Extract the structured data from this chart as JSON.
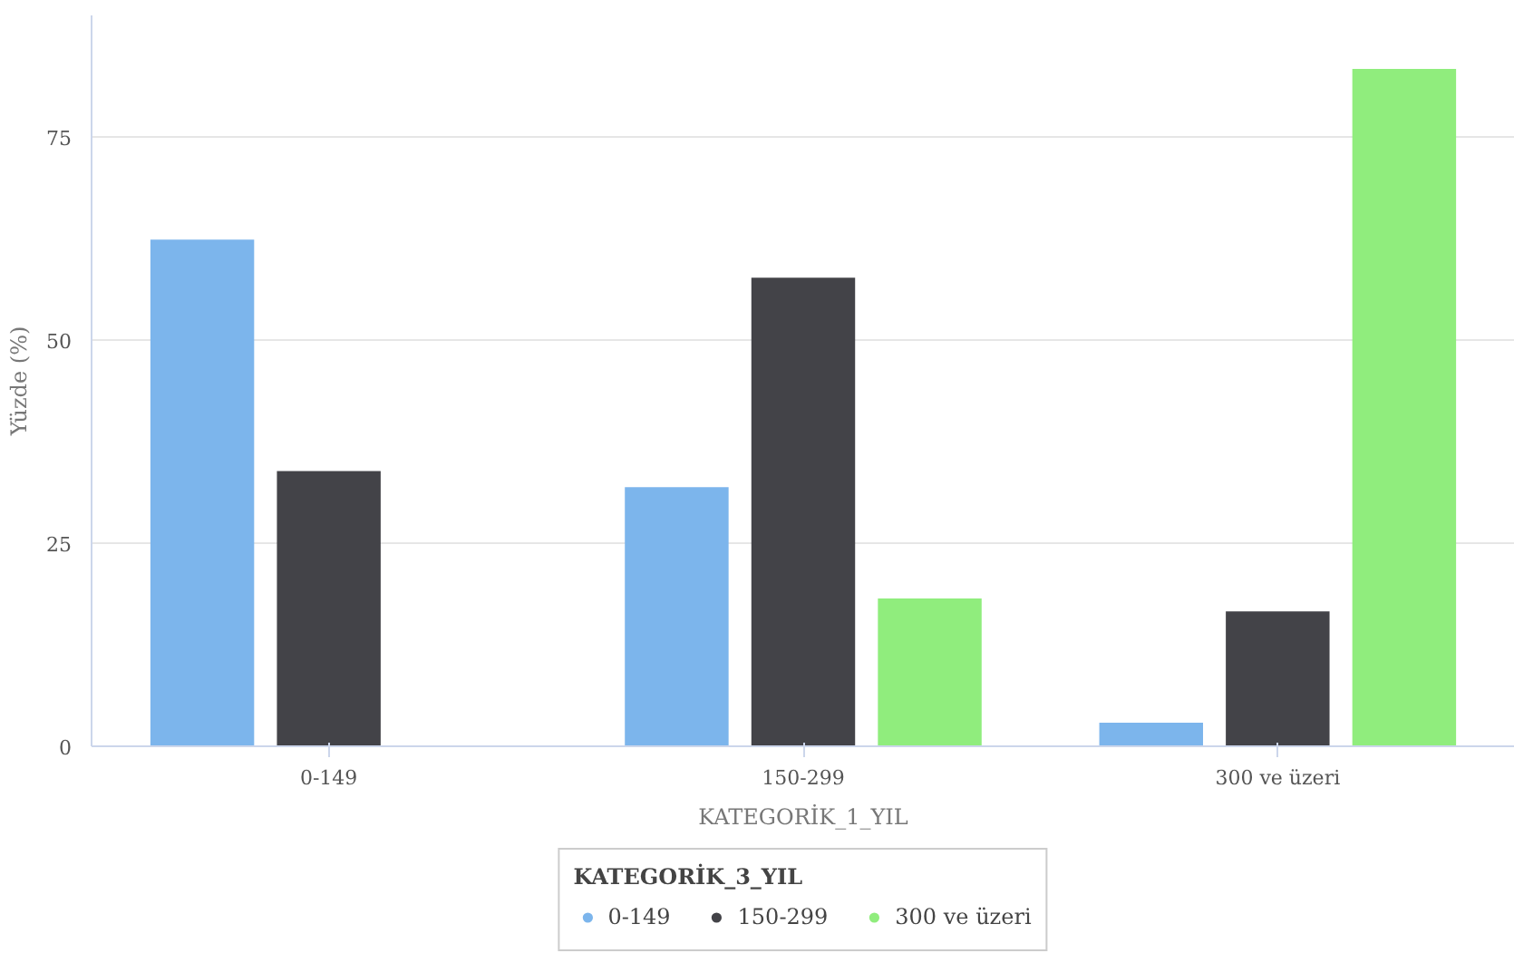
{
  "chart_data": {
    "type": "bar",
    "xlabel": "KATEGORİK_1_YIL",
    "ylabel": "Yüzde (%)",
    "legend_title": "KATEGORİK_3_YIL",
    "categories": [
      "0-149",
      "150-299",
      "300 ve üzeri"
    ],
    "series": [
      {
        "name": "0-149",
        "color": "#7cb5ec",
        "values": [
          62.4,
          31.9,
          2.9
        ]
      },
      {
        "name": "150-299",
        "color": "#434348",
        "values": [
          33.9,
          57.7,
          16.6
        ]
      },
      {
        "name": "300 ve üzeri",
        "color": "#90ed7d",
        "values": [
          null,
          18.2,
          83.4
        ]
      }
    ],
    "ylim": [
      0,
      90
    ],
    "yticks": [
      0,
      25,
      50,
      75
    ],
    "grid": "y",
    "legend": "bottom"
  }
}
